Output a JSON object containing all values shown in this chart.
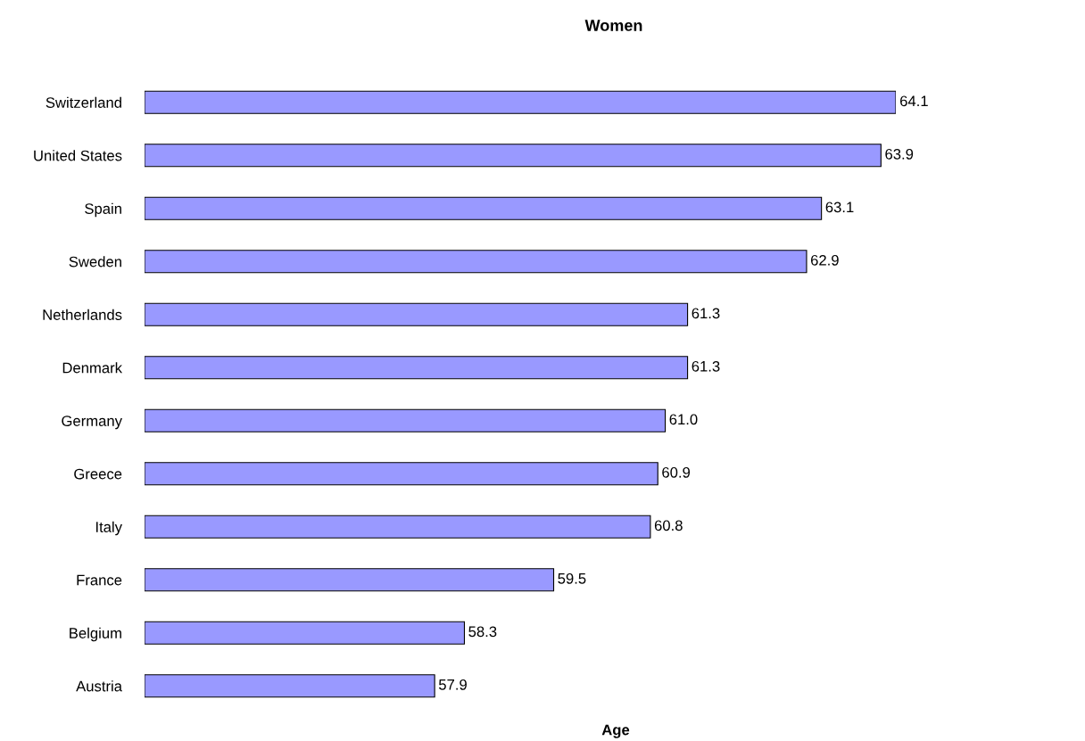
{
  "chart_data": {
    "type": "bar",
    "orientation": "horizontal",
    "title": "Women",
    "xlabel": "Age",
    "categories": [
      "Switzerland",
      "United States",
      "Spain",
      "Sweden",
      "Netherlands",
      "Denmark",
      "Germany",
      "Greece",
      "Italy",
      "France",
      "Belgium",
      "Austria"
    ],
    "values": [
      64.1,
      63.9,
      63.1,
      62.9,
      61.3,
      61.3,
      61.0,
      60.9,
      60.8,
      59.5,
      58.3,
      57.9
    ],
    "value_labels": [
      "64.1",
      "63.9",
      "63.1",
      "62.9",
      "61.3",
      "61.3",
      "61.0",
      "60.9",
      "60.8",
      "59.5",
      "58.3",
      "57.9"
    ],
    "color": "#9999ff",
    "xlim": [
      54,
      64.1
    ],
    "tick_labels": "y",
    "grid": false,
    "legend": false
  }
}
